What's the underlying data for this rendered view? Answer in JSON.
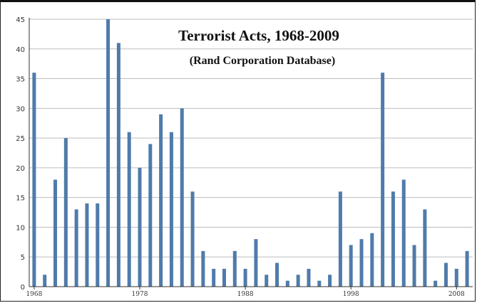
{
  "chart_data": {
    "type": "bar",
    "title": "Terrorist Acts, 1968-2009",
    "subtitle": "(Rand Corporation Database)",
    "xlabel": "",
    "ylabel": "",
    "ylim": [
      0,
      45
    ],
    "y_ticks": [
      0,
      5,
      10,
      15,
      20,
      25,
      30,
      35,
      40,
      45
    ],
    "x_tick_labels": [
      {
        "label": "1968",
        "category": 1968
      },
      {
        "label": "1978",
        "category": 1978
      },
      {
        "label": "1988",
        "category": 1988
      },
      {
        "label": "1998",
        "category": 1998
      },
      {
        "label": "2008",
        "category": 2008
      }
    ],
    "grid": true,
    "legend": "none",
    "bar_color": "#4f7bab",
    "categories": [
      1968,
      1969,
      1970,
      1971,
      1972,
      1973,
      1974,
      1975,
      1976,
      1977,
      1978,
      1979,
      1980,
      1981,
      1982,
      1983,
      1984,
      1985,
      1986,
      1987,
      1988,
      1989,
      1990,
      1991,
      1992,
      1993,
      1994,
      1995,
      1996,
      1997,
      1998,
      1999,
      2000,
      2001,
      2002,
      2003,
      2004,
      2005,
      2006,
      2007,
      2008,
      2009
    ],
    "values": [
      36,
      2,
      18,
      25,
      13,
      14,
      14,
      45,
      41,
      26,
      20,
      24,
      29,
      26,
      30,
      16,
      6,
      3,
      3,
      6,
      3,
      8,
      2,
      4,
      1,
      2,
      3,
      1,
      2,
      16,
      7,
      8,
      9,
      36,
      16,
      18,
      7,
      13,
      1,
      4,
      3,
      6
    ]
  }
}
